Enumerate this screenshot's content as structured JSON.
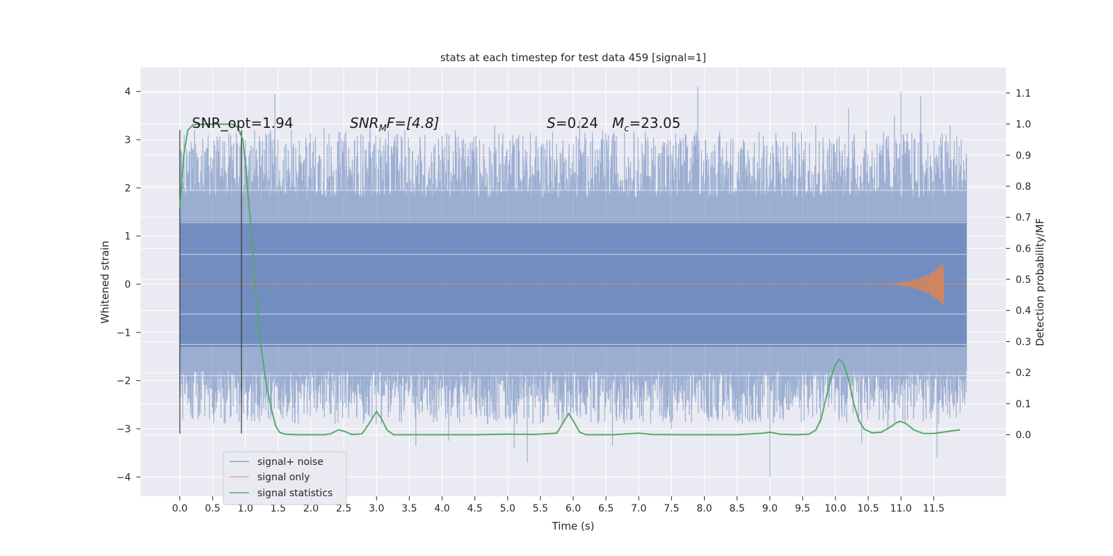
{
  "chart_data": {
    "type": "line",
    "title": "stats at each timestep for test data 459 [signal=1]",
    "xlabel": "Time (s)",
    "ylabel": "Whitened strain",
    "y2label": "Detection probability/MF",
    "xlim": [
      -0.6,
      12.6
    ],
    "ylim": [
      -4.4,
      4.5
    ],
    "y2lim": [
      -0.198,
      1.1825
    ],
    "x_ticks": [
      "0.0",
      "0.5",
      "1.0",
      "1.5",
      "2.0",
      "2.5",
      "3.0",
      "3.5",
      "4.0",
      "4.5",
      "5.0",
      "5.5",
      "6.0",
      "6.5",
      "7.0",
      "7.5",
      "8.0",
      "8.5",
      "9.0",
      "9.5",
      "10.0",
      "10.5",
      "11.0",
      "11.5"
    ],
    "y_ticks": [
      "4",
      "3",
      "2",
      "1",
      "0",
      "−1",
      "−2",
      "−3",
      "−4"
    ],
    "y2_ticks": [
      "1.1",
      "1.0",
      "0.9",
      "0.8",
      "0.7",
      "0.6",
      "0.5",
      "0.4",
      "0.3",
      "0.2",
      "0.1",
      "0.0"
    ],
    "grid": true,
    "legend_position": "lower-left",
    "annotations": {
      "snr_opt": "SNR_opt=1.94",
      "snr_mf_label": "SNR",
      "snr_mf_sub": "M",
      "snr_mf_rest": "F=[4.8]",
      "s_label": "S",
      "s_value": "=0.24",
      "mc_label": "M",
      "mc_sub": "c",
      "mc_value": "=23.05"
    },
    "vlines": [
      0.0,
      0.94
    ],
    "series": [
      {
        "name": "signal+ noise",
        "color": "#4c72b0",
        "t_range": [
          0.0,
          12.0
        ],
        "band": [
          -1.3,
          1.3
        ],
        "peaks_upper": [
          [
            0.1,
            2.8
          ],
          [
            0.5,
            2.6
          ],
          [
            1.0,
            3.0
          ],
          [
            1.45,
            3.95
          ],
          [
            1.7,
            3.2
          ],
          [
            2.2,
            3.25
          ],
          [
            2.9,
            3.3
          ],
          [
            3.3,
            3.1
          ],
          [
            4.8,
            3.3
          ],
          [
            5.6,
            3.0
          ],
          [
            6.1,
            3.4
          ],
          [
            6.6,
            3.1
          ],
          [
            7.1,
            3.0
          ],
          [
            7.9,
            4.1
          ],
          [
            9.7,
            3.3
          ],
          [
            10.2,
            3.65
          ],
          [
            10.9,
            3.5
          ],
          [
            11.0,
            4.0
          ],
          [
            11.3,
            3.9
          ],
          [
            11.75,
            3.3
          ]
        ],
        "peaks_lower": [
          [
            0.2,
            -2.8
          ],
          [
            1.4,
            -2.7
          ],
          [
            2.8,
            -2.9
          ],
          [
            3.6,
            -3.35
          ],
          [
            4.1,
            -3.25
          ],
          [
            5.1,
            -3.4
          ],
          [
            5.3,
            -3.7
          ],
          [
            6.6,
            -3.35
          ],
          [
            7.5,
            -3.0
          ],
          [
            9.0,
            -4.0
          ],
          [
            10.4,
            -3.3
          ],
          [
            10.8,
            -3.0
          ],
          [
            11.55,
            -3.6
          ]
        ]
      },
      {
        "name": "signal only",
        "color": "#dd8452",
        "t_range": [
          0.0,
          12.0
        ],
        "chirp_end": 11.65,
        "chirp_peak_amp": 0.45
      },
      {
        "name": "signal statistics",
        "color": "#55a868",
        "points": [
          [
            0.0,
            0.73
          ],
          [
            0.06,
            0.9
          ],
          [
            0.12,
            0.98
          ],
          [
            0.2,
            0.998
          ],
          [
            0.4,
            1.0
          ],
          [
            0.6,
            1.0
          ],
          [
            0.8,
            1.0
          ],
          [
            0.88,
            0.99
          ],
          [
            0.96,
            0.95
          ],
          [
            1.0,
            0.87
          ],
          [
            1.08,
            0.68
          ],
          [
            1.16,
            0.45
          ],
          [
            1.24,
            0.28
          ],
          [
            1.32,
            0.16
          ],
          [
            1.4,
            0.08
          ],
          [
            1.46,
            0.03
          ],
          [
            1.52,
            0.008
          ],
          [
            1.6,
            0.002
          ],
          [
            1.8,
            0.0
          ],
          [
            2.0,
            0.0
          ],
          [
            2.2,
            0.0
          ],
          [
            2.3,
            0.003
          ],
          [
            2.42,
            0.016
          ],
          [
            2.52,
            0.01
          ],
          [
            2.62,
            0.001
          ],
          [
            2.78,
            0.003
          ],
          [
            2.9,
            0.04
          ],
          [
            3.0,
            0.075
          ],
          [
            3.08,
            0.05
          ],
          [
            3.16,
            0.015
          ],
          [
            3.26,
            0.0
          ],
          [
            3.6,
            0.0
          ],
          [
            4.0,
            0.0
          ],
          [
            4.5,
            0.0
          ],
          [
            5.0,
            0.002
          ],
          [
            5.4,
            0.001
          ],
          [
            5.75,
            0.005
          ],
          [
            5.85,
            0.04
          ],
          [
            5.93,
            0.068
          ],
          [
            6.0,
            0.045
          ],
          [
            6.1,
            0.008
          ],
          [
            6.2,
            0.0
          ],
          [
            6.6,
            0.0
          ],
          [
            7.0,
            0.005
          ],
          [
            7.2,
            0.001
          ],
          [
            7.6,
            0.0
          ],
          [
            8.0,
            0.0
          ],
          [
            8.5,
            0.0
          ],
          [
            8.9,
            0.005
          ],
          [
            9.0,
            0.008
          ],
          [
            9.15,
            0.002
          ],
          [
            9.4,
            0.0
          ],
          [
            9.6,
            0.002
          ],
          [
            9.7,
            0.015
          ],
          [
            9.78,
            0.05
          ],
          [
            9.86,
            0.12
          ],
          [
            9.94,
            0.19
          ],
          [
            10.0,
            0.225
          ],
          [
            10.06,
            0.243
          ],
          [
            10.12,
            0.23
          ],
          [
            10.2,
            0.18
          ],
          [
            10.28,
            0.1
          ],
          [
            10.36,
            0.045
          ],
          [
            10.44,
            0.018
          ],
          [
            10.56,
            0.006
          ],
          [
            10.7,
            0.008
          ],
          [
            10.84,
            0.025
          ],
          [
            10.94,
            0.04
          ],
          [
            11.0,
            0.043
          ],
          [
            11.08,
            0.035
          ],
          [
            11.2,
            0.015
          ],
          [
            11.34,
            0.004
          ],
          [
            11.5,
            0.004
          ],
          [
            11.7,
            0.01
          ],
          [
            11.9,
            0.016
          ]
        ]
      }
    ]
  }
}
